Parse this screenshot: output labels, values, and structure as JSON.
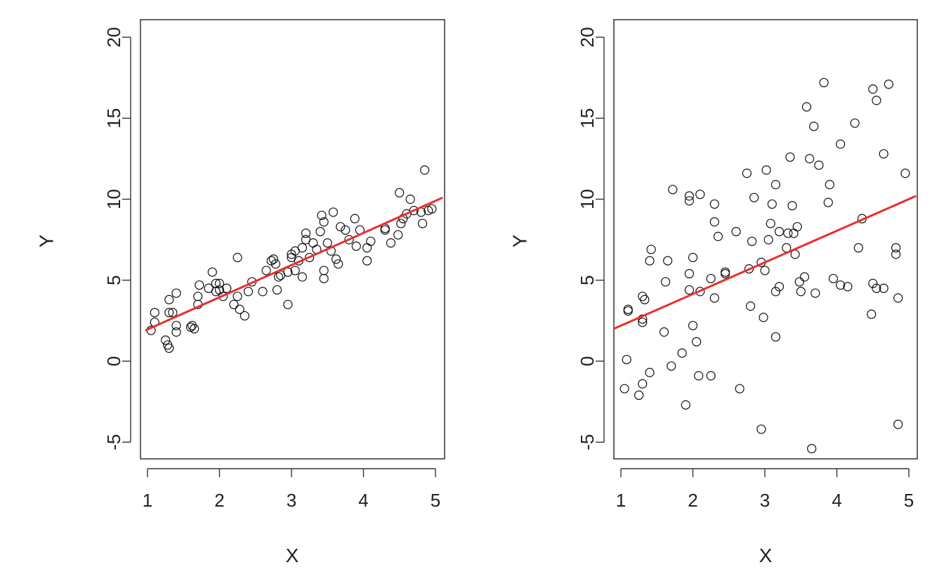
{
  "chart_data": [
    {
      "type": "scatter",
      "xlabel": "X",
      "ylabel": "Y",
      "xlim": [
        1,
        5
      ],
      "ylim": [
        -5,
        20
      ],
      "xticks": [
        "1",
        "2",
        "3",
        "4",
        "5"
      ],
      "yticks": [
        "-5",
        "0",
        "5",
        "10",
        "15",
        "20"
      ],
      "fit_line": {
        "x": [
          0.97,
          5.1
        ],
        "y": [
          1.9,
          10.1
        ],
        "color": "#e8302b"
      },
      "points": [
        [
          1.05,
          1.9
        ],
        [
          1.1,
          2.4
        ],
        [
          1.1,
          3.0
        ],
        [
          1.25,
          1.3
        ],
        [
          1.28,
          1.0
        ],
        [
          1.3,
          0.8
        ],
        [
          1.3,
          3.0
        ],
        [
          1.3,
          3.8
        ],
        [
          1.35,
          3.0
        ],
        [
          1.4,
          2.2
        ],
        [
          1.4,
          1.8
        ],
        [
          1.4,
          4.2
        ],
        [
          1.6,
          2.1
        ],
        [
          1.62,
          2.2
        ],
        [
          1.65,
          2.0
        ],
        [
          1.7,
          3.5
        ],
        [
          1.7,
          4.0
        ],
        [
          1.72,
          4.7
        ],
        [
          1.85,
          4.5
        ],
        [
          1.9,
          5.5
        ],
        [
          1.95,
          4.8
        ],
        [
          1.95,
          4.3
        ],
        [
          2.0,
          4.4
        ],
        [
          2.0,
          4.8
        ],
        [
          2.05,
          4.0
        ],
        [
          2.1,
          4.5
        ],
        [
          2.2,
          3.5
        ],
        [
          2.25,
          6.4
        ],
        [
          2.25,
          4.0
        ],
        [
          2.28,
          3.2
        ],
        [
          2.35,
          2.8
        ],
        [
          2.4,
          4.3
        ],
        [
          2.45,
          4.9
        ],
        [
          2.6,
          4.3
        ],
        [
          2.65,
          5.6
        ],
        [
          2.72,
          6.2
        ],
        [
          2.75,
          6.3
        ],
        [
          2.78,
          6.0
        ],
        [
          2.8,
          4.4
        ],
        [
          2.82,
          5.2
        ],
        [
          2.85,
          5.3
        ],
        [
          2.95,
          3.5
        ],
        [
          2.95,
          5.5
        ],
        [
          3.0,
          6.4
        ],
        [
          3.0,
          6.6
        ],
        [
          3.05,
          6.8
        ],
        [
          3.05,
          5.6
        ],
        [
          3.1,
          6.2
        ],
        [
          3.15,
          5.2
        ],
        [
          3.15,
          7.0
        ],
        [
          3.2,
          7.5
        ],
        [
          3.2,
          7.9
        ],
        [
          3.25,
          6.4
        ],
        [
          3.3,
          7.3
        ],
        [
          3.35,
          6.9
        ],
        [
          3.4,
          8.0
        ],
        [
          3.42,
          9.0
        ],
        [
          3.45,
          8.6
        ],
        [
          3.45,
          5.6
        ],
        [
          3.45,
          5.1
        ],
        [
          3.5,
          7.3
        ],
        [
          3.55,
          6.8
        ],
        [
          3.58,
          9.2
        ],
        [
          3.62,
          6.3
        ],
        [
          3.65,
          6.0
        ],
        [
          3.68,
          8.3
        ],
        [
          3.75,
          8.1
        ],
        [
          3.8,
          7.5
        ],
        [
          3.88,
          8.8
        ],
        [
          3.9,
          7.1
        ],
        [
          3.95,
          8.1
        ],
        [
          4.05,
          6.2
        ],
        [
          4.05,
          7.0
        ],
        [
          4.1,
          7.4
        ],
        [
          4.3,
          8.1
        ],
        [
          4.3,
          8.2
        ],
        [
          4.38,
          7.3
        ],
        [
          4.48,
          7.8
        ],
        [
          4.5,
          10.4
        ],
        [
          4.52,
          8.5
        ],
        [
          4.55,
          8.8
        ],
        [
          4.6,
          9.1
        ],
        [
          4.65,
          10.0
        ],
        [
          4.7,
          9.3
        ],
        [
          4.8,
          9.2
        ],
        [
          4.82,
          8.5
        ],
        [
          4.85,
          11.8
        ],
        [
          4.9,
          9.3
        ],
        [
          4.95,
          9.4
        ]
      ]
    },
    {
      "type": "scatter",
      "xlabel": "X",
      "ylabel": "Y",
      "xlim": [
        1,
        5
      ],
      "ylim": [
        -5,
        20
      ],
      "xticks": [
        "1",
        "2",
        "3",
        "4",
        "5"
      ],
      "yticks": [
        "-5",
        "0",
        "5",
        "10",
        "15",
        "20"
      ],
      "fit_line": {
        "x": [
          0.9,
          5.1
        ],
        "y": [
          2.0,
          10.2
        ],
        "color": "#e8302b"
      },
      "points": [
        [
          1.05,
          -1.7
        ],
        [
          1.08,
          0.1
        ],
        [
          1.1,
          3.1
        ],
        [
          1.1,
          3.2
        ],
        [
          1.25,
          -2.1
        ],
        [
          1.3,
          -1.4
        ],
        [
          1.3,
          2.4
        ],
        [
          1.3,
          2.6
        ],
        [
          1.3,
          4.0
        ],
        [
          1.33,
          3.8
        ],
        [
          1.4,
          -0.7
        ],
        [
          1.4,
          6.2
        ],
        [
          1.42,
          6.9
        ],
        [
          1.6,
          1.8
        ],
        [
          1.62,
          4.9
        ],
        [
          1.65,
          6.2
        ],
        [
          1.7,
          -0.3
        ],
        [
          1.72,
          10.6
        ],
        [
          1.85,
          0.5
        ],
        [
          1.9,
          -2.7
        ],
        [
          1.95,
          4.4
        ],
        [
          1.95,
          5.4
        ],
        [
          1.95,
          9.9
        ],
        [
          1.95,
          10.2
        ],
        [
          2.0,
          6.4
        ],
        [
          2.0,
          2.2
        ],
        [
          2.05,
          1.2
        ],
        [
          2.08,
          -0.9
        ],
        [
          2.1,
          10.3
        ],
        [
          2.1,
          4.3
        ],
        [
          2.25,
          -0.9
        ],
        [
          2.25,
          5.1
        ],
        [
          2.3,
          3.9
        ],
        [
          2.3,
          9.7
        ],
        [
          2.3,
          8.6
        ],
        [
          2.35,
          7.7
        ],
        [
          2.45,
          5.4
        ],
        [
          2.45,
          5.5
        ],
        [
          2.6,
          8.0
        ],
        [
          2.65,
          -1.7
        ],
        [
          2.75,
          11.6
        ],
        [
          2.78,
          5.7
        ],
        [
          2.8,
          3.4
        ],
        [
          2.82,
          7.4
        ],
        [
          2.85,
          10.1
        ],
        [
          2.95,
          -4.2
        ],
        [
          2.95,
          6.1
        ],
        [
          2.98,
          2.7
        ],
        [
          3.0,
          5.6
        ],
        [
          3.02,
          11.8
        ],
        [
          3.05,
          7.5
        ],
        [
          3.08,
          8.5
        ],
        [
          3.1,
          9.7
        ],
        [
          3.15,
          1.5
        ],
        [
          3.15,
          4.3
        ],
        [
          3.15,
          10.9
        ],
        [
          3.2,
          8.0
        ],
        [
          3.2,
          4.6
        ],
        [
          3.3,
          7.0
        ],
        [
          3.32,
          7.9
        ],
        [
          3.35,
          12.6
        ],
        [
          3.38,
          9.6
        ],
        [
          3.4,
          7.9
        ],
        [
          3.42,
          6.6
        ],
        [
          3.45,
          8.3
        ],
        [
          3.48,
          4.9
        ],
        [
          3.5,
          4.3
        ],
        [
          3.55,
          5.2
        ],
        [
          3.58,
          15.7
        ],
        [
          3.62,
          12.5
        ],
        [
          3.65,
          -5.4
        ],
        [
          3.68,
          14.5
        ],
        [
          3.7,
          4.2
        ],
        [
          3.75,
          12.1
        ],
        [
          3.82,
          17.2
        ],
        [
          3.88,
          9.8
        ],
        [
          3.9,
          10.9
        ],
        [
          3.95,
          5.1
        ],
        [
          4.05,
          13.4
        ],
        [
          4.05,
          4.7
        ],
        [
          4.15,
          4.6
        ],
        [
          4.25,
          14.7
        ],
        [
          4.3,
          7.0
        ],
        [
          4.35,
          8.8
        ],
        [
          4.48,
          2.9
        ],
        [
          4.5,
          4.8
        ],
        [
          4.5,
          16.8
        ],
        [
          4.55,
          16.1
        ],
        [
          4.55,
          4.5
        ],
        [
          4.65,
          12.8
        ],
        [
          4.65,
          4.5
        ],
        [
          4.72,
          17.1
        ],
        [
          4.82,
          7.0
        ],
        [
          4.82,
          6.6
        ],
        [
          4.85,
          3.9
        ],
        [
          4.85,
          -3.9
        ],
        [
          4.95,
          11.6
        ]
      ]
    }
  ]
}
